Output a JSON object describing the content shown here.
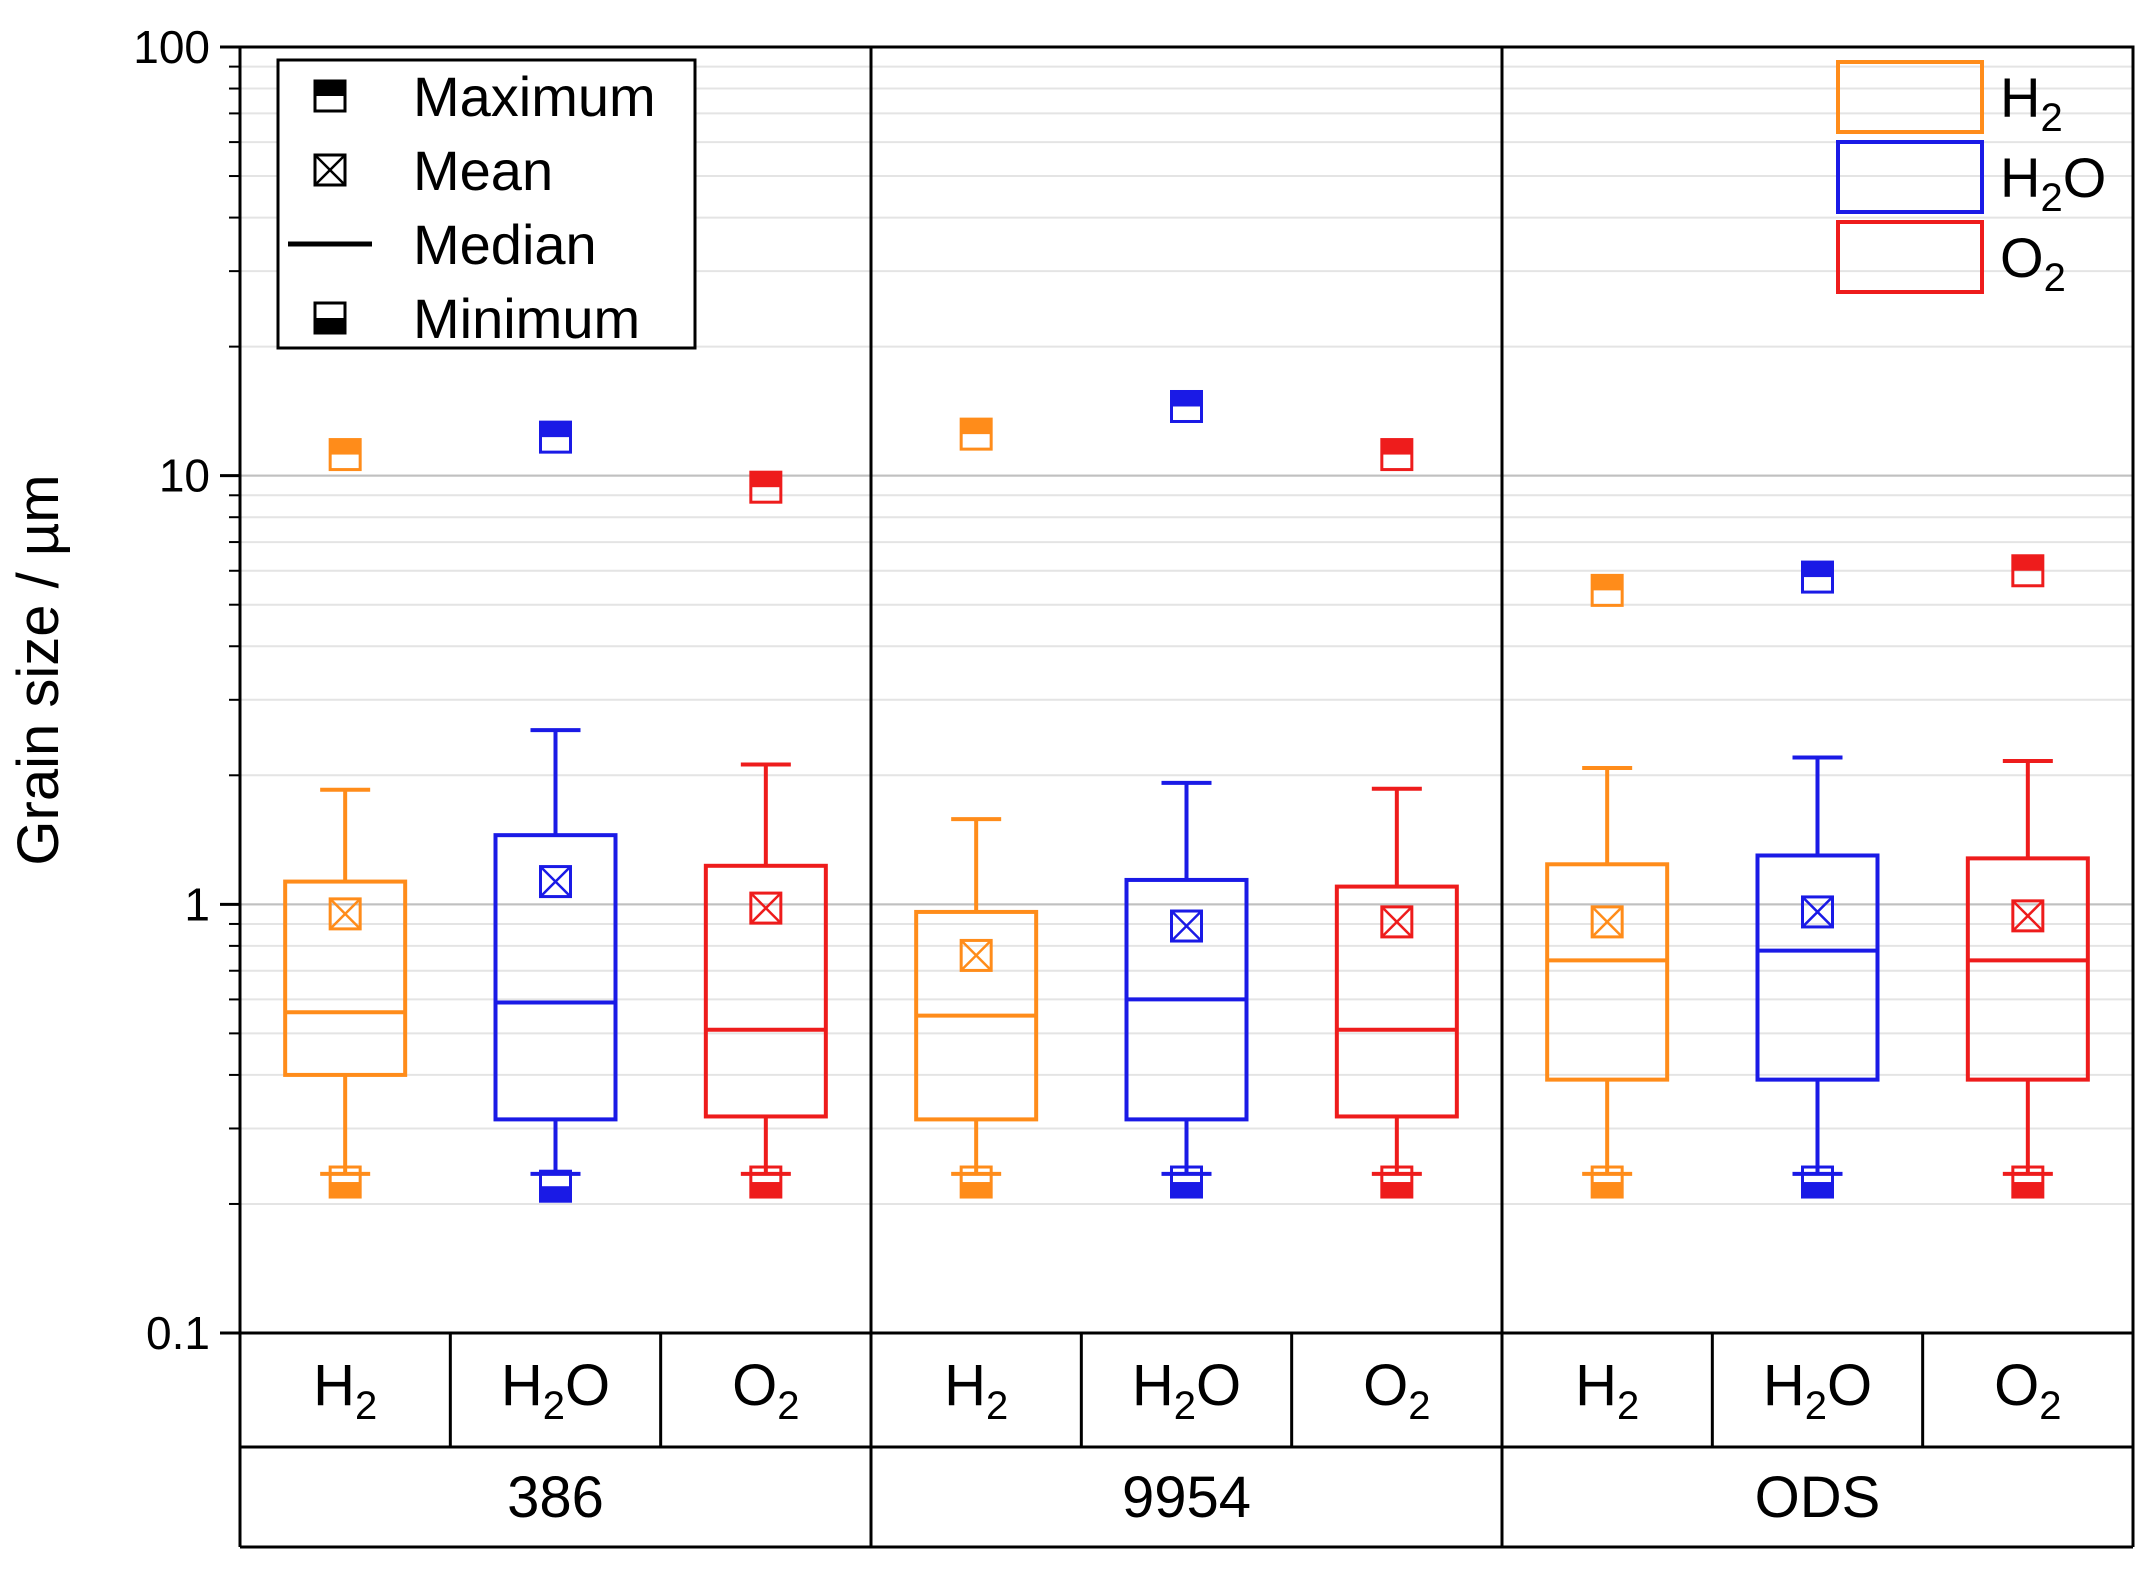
{
  "chart_data": {
    "type": "boxplot",
    "y_axis": {
      "label": "Grain size / µm",
      "scale": "log",
      "range": [
        0.1,
        100
      ],
      "tick_labels": [
        "0.1",
        "1",
        "10",
        "100"
      ],
      "tick_values": [
        0.1,
        1,
        10,
        100
      ],
      "grid": true
    },
    "x_axis": {
      "groups": [
        "386",
        "9954",
        "ODS"
      ],
      "categories_per_group": [
        "H2",
        "H2O",
        "O2"
      ]
    },
    "category_display": [
      {
        "key": "H2",
        "base": "H",
        "sub": "2",
        "tail": ""
      },
      {
        "key": "H2O",
        "base": "H",
        "sub": "2",
        "tail": "O"
      },
      {
        "key": "O2",
        "base": "O",
        "sub": "2",
        "tail": ""
      }
    ],
    "colors": {
      "H2": "#FF8C1A",
      "H2O": "#1A1AE6",
      "O2": "#EE1C1C"
    },
    "series": [
      {
        "group": "386",
        "category": "H2",
        "minimum": 0.225,
        "whisker_low": 0.235,
        "q1": 0.4,
        "median": 0.56,
        "mean": 0.95,
        "q3": 1.13,
        "whisker_high": 1.85,
        "maximum": 11.2
      },
      {
        "group": "386",
        "category": "H2O",
        "minimum": 0.22,
        "whisker_low": 0.235,
        "q1": 0.315,
        "median": 0.59,
        "mean": 1.13,
        "q3": 1.45,
        "whisker_high": 2.55,
        "maximum": 12.3
      },
      {
        "group": "386",
        "category": "O2",
        "minimum": 0.225,
        "whisker_low": 0.235,
        "q1": 0.32,
        "median": 0.51,
        "mean": 0.98,
        "q3": 1.23,
        "whisker_high": 2.12,
        "maximum": 9.4
      },
      {
        "group": "9954",
        "category": "H2",
        "minimum": 0.225,
        "whisker_low": 0.235,
        "q1": 0.315,
        "median": 0.55,
        "mean": 0.76,
        "q3": 0.96,
        "whisker_high": 1.58,
        "maximum": 12.5
      },
      {
        "group": "9954",
        "category": "H2O",
        "minimum": 0.225,
        "whisker_low": 0.235,
        "q1": 0.315,
        "median": 0.6,
        "mean": 0.89,
        "q3": 1.14,
        "whisker_high": 1.92,
        "maximum": 14.5
      },
      {
        "group": "9954",
        "category": "O2",
        "minimum": 0.225,
        "whisker_low": 0.235,
        "q1": 0.32,
        "median": 0.51,
        "mean": 0.91,
        "q3": 1.1,
        "whisker_high": 1.86,
        "maximum": 11.2
      },
      {
        "group": "ODS",
        "category": "H2",
        "minimum": 0.225,
        "whisker_low": 0.235,
        "q1": 0.39,
        "median": 0.74,
        "mean": 0.91,
        "q3": 1.24,
        "whisker_high": 2.08,
        "maximum": 5.4
      },
      {
        "group": "ODS",
        "category": "H2O",
        "minimum": 0.225,
        "whisker_low": 0.235,
        "q1": 0.39,
        "median": 0.78,
        "mean": 0.96,
        "q3": 1.3,
        "whisker_high": 2.2,
        "maximum": 5.8
      },
      {
        "group": "ODS",
        "category": "O2",
        "minimum": 0.225,
        "whisker_low": 0.235,
        "q1": 0.39,
        "median": 0.74,
        "mean": 0.94,
        "q3": 1.28,
        "whisker_high": 2.16,
        "maximum": 6.0
      }
    ],
    "legend_markers": {
      "location": "top-left",
      "items": [
        "Maximum",
        "Mean",
        "Median",
        "Minimum"
      ]
    },
    "legend_series": {
      "location": "top-right",
      "items": [
        {
          "key": "H2",
          "base": "H",
          "sub": "2",
          "tail": ""
        },
        {
          "key": "H2O",
          "base": "H",
          "sub": "2",
          "tail": "O"
        },
        {
          "key": "O2",
          "base": "O",
          "sub": "2",
          "tail": ""
        }
      ]
    }
  }
}
